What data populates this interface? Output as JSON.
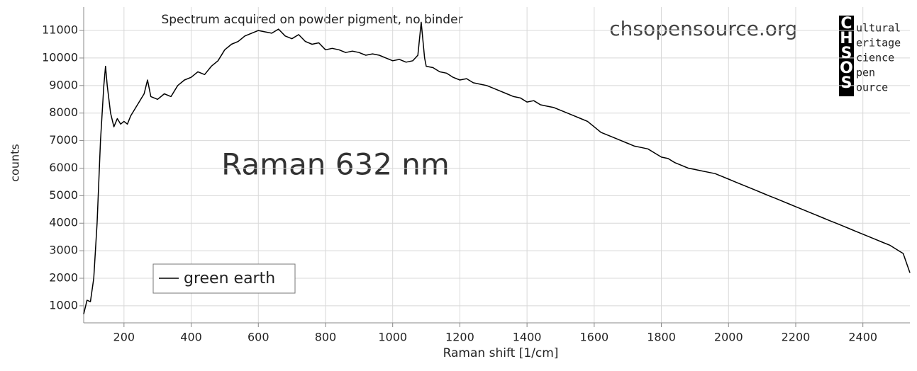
{
  "chart_data": {
    "type": "line",
    "annotations": [
      "Spectrum acquired on powder pigment, no binder",
      "chsopensource.org",
      "Raman 632 nm"
    ],
    "logo": {
      "letters": [
        "C",
        "H",
        "S",
        "O",
        "S"
      ],
      "words": [
        "ultural",
        "eritage",
        "cience",
        "pen",
        "ource"
      ]
    },
    "xlabel": "Raman shift [1/cm]",
    "ylabel": "counts",
    "xlim": [
      80,
      2540
    ],
    "ylim": [
      380,
      11850
    ],
    "xticks": [
      200,
      400,
      600,
      800,
      1000,
      1200,
      1400,
      1600,
      1800,
      2000,
      2200,
      2400
    ],
    "yticks": [
      1000,
      2000,
      3000,
      4000,
      5000,
      6000,
      7000,
      8000,
      9000,
      10000,
      11000
    ],
    "grid": true,
    "legend": "lower left",
    "x": [
      80,
      90,
      100,
      110,
      120,
      130,
      140,
      145,
      150,
      160,
      170,
      180,
      190,
      200,
      210,
      220,
      240,
      260,
      270,
      280,
      300,
      320,
      340,
      360,
      380,
      400,
      420,
      440,
      460,
      480,
      500,
      520,
      540,
      560,
      580,
      600,
      620,
      640,
      660,
      680,
      700,
      720,
      740,
      760,
      780,
      800,
      820,
      840,
      860,
      880,
      900,
      920,
      940,
      960,
      980,
      1000,
      1020,
      1040,
      1060,
      1075,
      1085,
      1095,
      1100,
      1120,
      1140,
      1160,
      1180,
      1200,
      1220,
      1240,
      1260,
      1280,
      1300,
      1320,
      1340,
      1360,
      1380,
      1400,
      1420,
      1440,
      1460,
      1480,
      1500,
      1520,
      1540,
      1560,
      1580,
      1600,
      1620,
      1640,
      1660,
      1680,
      1700,
      1720,
      1740,
      1760,
      1780,
      1800,
      1820,
      1840,
      1860,
      1880,
      1900,
      1920,
      1940,
      1960,
      1980,
      2000,
      2020,
      2040,
      2060,
      2080,
      2100,
      2120,
      2140,
      2160,
      2180,
      2200,
      2220,
      2240,
      2260,
      2280,
      2300,
      2320,
      2340,
      2360,
      2380,
      2400,
      2420,
      2440,
      2460,
      2480,
      2500,
      2520,
      2540
    ],
    "series": [
      {
        "name": "green earth",
        "color": "#000000",
        "values": [
          700,
          1200,
          1150,
          2000,
          4000,
          7000,
          9000,
          9700,
          9000,
          8000,
          7500,
          7800,
          7600,
          7700,
          7600,
          7900,
          8300,
          8700,
          9200,
          8600,
          8500,
          8700,
          8600,
          9000,
          9200,
          9300,
          9500,
          9400,
          9700,
          9900,
          10300,
          10500,
          10600,
          10800,
          10900,
          11000,
          10950,
          10900,
          11050,
          10800,
          10700,
          10850,
          10600,
          10500,
          10550,
          10300,
          10350,
          10300,
          10200,
          10250,
          10200,
          10100,
          10150,
          10100,
          10000,
          9900,
          9950,
          9850,
          9900,
          10100,
          11300,
          10000,
          9700,
          9650,
          9500,
          9450,
          9300,
          9200,
          9250,
          9100,
          9050,
          9000,
          8900,
          8800,
          8700,
          8600,
          8550,
          8400,
          8450,
          8300,
          8250,
          8200,
          8100,
          8000,
          7900,
          7800,
          7700,
          7500,
          7300,
          7200,
          7100,
          7000,
          6900,
          6800,
          6750,
          6700,
          6550,
          6400,
          6350,
          6200,
          6100,
          6000,
          5950,
          5900,
          5850,
          5800,
          5700,
          5600,
          5500,
          5400,
          5300,
          5200,
          5100,
          5000,
          4900,
          4800,
          4700,
          4600,
          4500,
          4400,
          4300,
          4200,
          4100,
          4000,
          3900,
          3800,
          3700,
          3600,
          3500,
          3400,
          3300,
          3200,
          3050,
          2900,
          2200
        ]
      }
    ]
  }
}
